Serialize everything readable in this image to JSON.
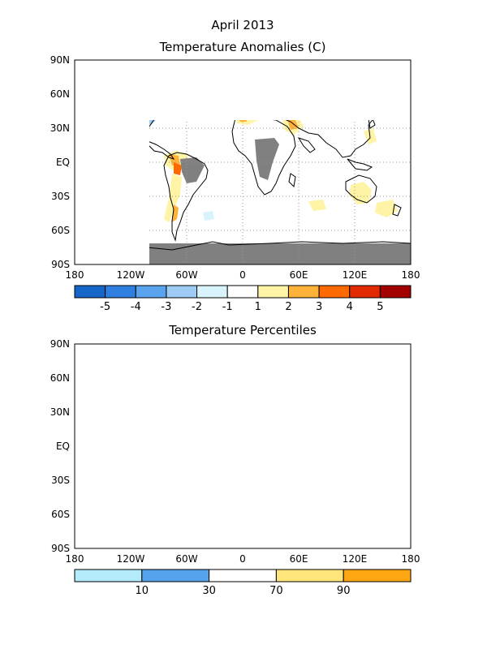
{
  "title": "April 2013",
  "panels": [
    {
      "id": "anomalies",
      "title": "Temperature Anomalies (C)",
      "colorbar": {
        "colors": [
          "#1565c8",
          "#2f7fe0",
          "#5aa4ef",
          "#9dcbf4",
          "#d8f3fb",
          "#ffffff",
          "#fff3a6",
          "#ffb23a",
          "#ff6a00",
          "#e12a00",
          "#a30000"
        ],
        "labels": [
          "-5",
          "-4",
          "-3",
          "-2",
          "-1",
          "1",
          "2",
          "3",
          "4",
          "5"
        ]
      }
    },
    {
      "id": "percentiles",
      "title": "Temperature Percentiles",
      "colorbar": {
        "colors": [
          "#b3ecf8",
          "#55a3ec",
          "#ffffff",
          "#ffe57a",
          "#ffa613"
        ],
        "labels": [
          "10",
          "30",
          "70",
          "90"
        ]
      }
    }
  ],
  "axes": {
    "lat_labels": [
      "90N",
      "60N",
      "30N",
      "EQ",
      "30S",
      "60S",
      "90S"
    ],
    "lon_labels": [
      "180",
      "120W",
      "60W",
      "0",
      "60E",
      "120E",
      "180"
    ]
  },
  "colors": {
    "missing": "#808080",
    "coast": "#000000",
    "grid": "#9a9a9a"
  }
}
